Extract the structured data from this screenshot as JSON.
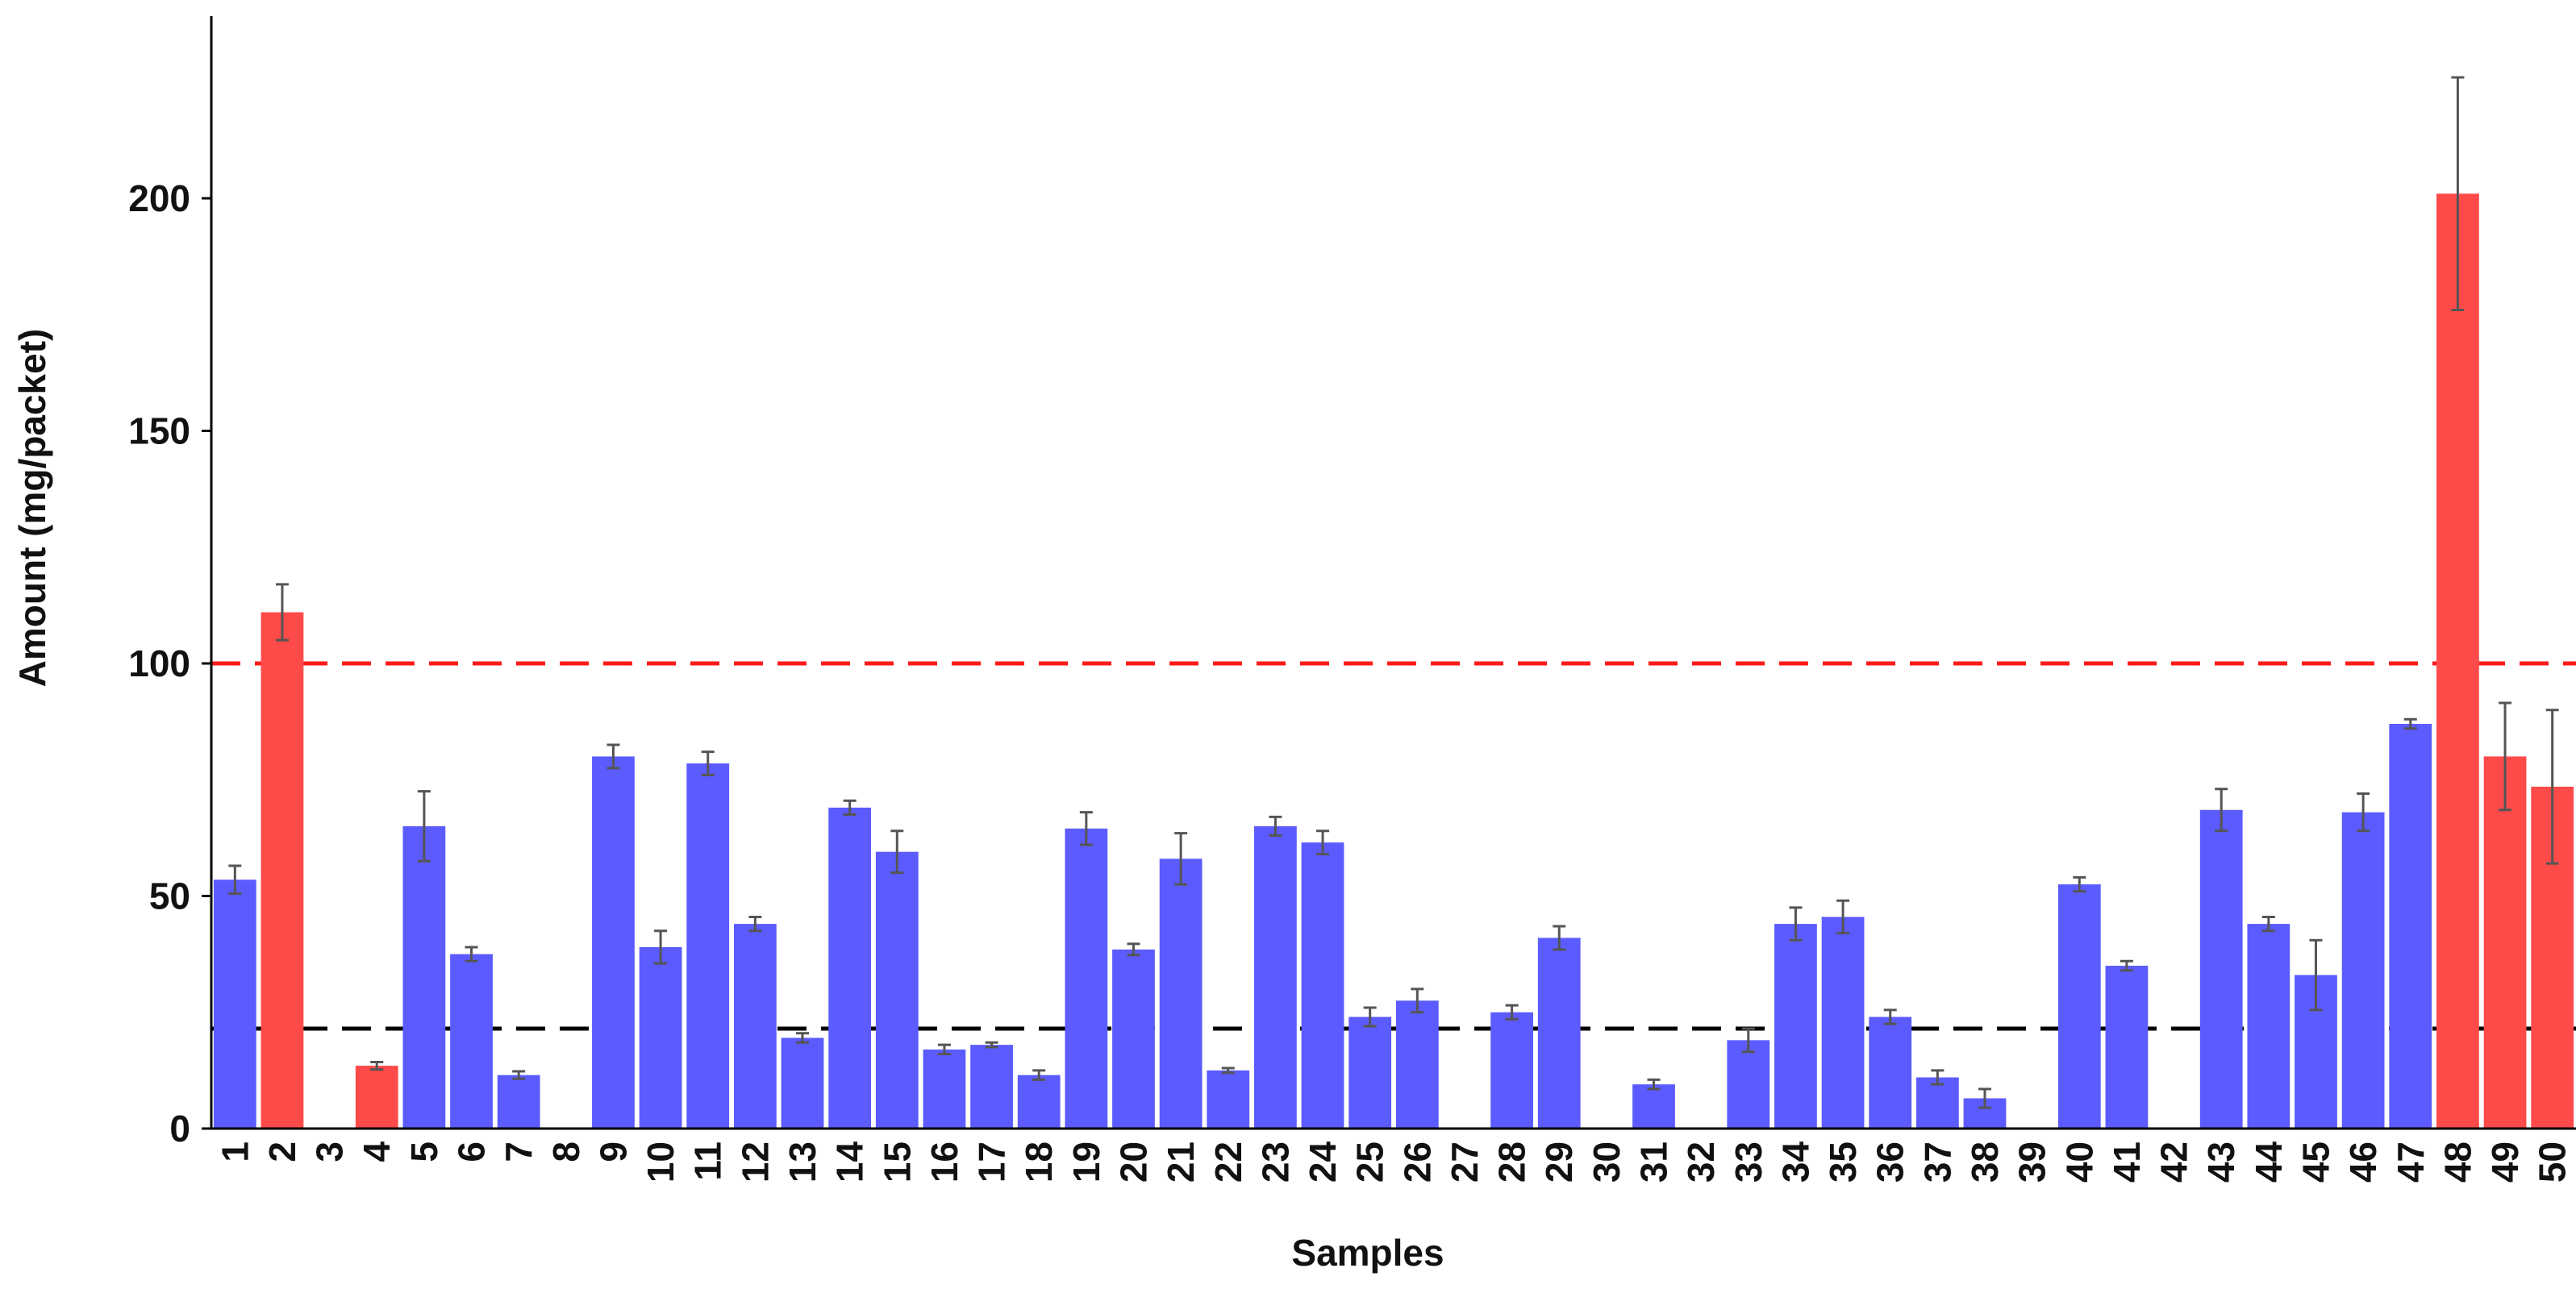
{
  "chart_data": {
    "type": "bar",
    "xlabel": "Samples",
    "ylabel": "Amount (mg/packet)",
    "ylim": [
      0,
      240
    ],
    "yticks": [
      0,
      50,
      100,
      150,
      200
    ],
    "grid": false,
    "categories": [
      "1",
      "2",
      "3",
      "4",
      "5",
      "6",
      "7",
      "8",
      "9",
      "10",
      "11",
      "12",
      "13",
      "14",
      "15",
      "16",
      "17",
      "18",
      "19",
      "20",
      "21",
      "22",
      "23",
      "24",
      "25",
      "26",
      "27",
      "28",
      "29",
      "30",
      "31",
      "32",
      "33",
      "34",
      "35",
      "36",
      "37",
      "38",
      "39",
      "40",
      "41",
      "42",
      "43",
      "44",
      "45",
      "46",
      "47",
      "48",
      "49",
      "50"
    ],
    "values": [
      53.5,
      111,
      0,
      13.5,
      65,
      37.5,
      11.5,
      0,
      80,
      39,
      78.5,
      44,
      19.5,
      69,
      59.5,
      17,
      18,
      11.5,
      64.5,
      38.5,
      58,
      12.5,
      65,
      61.5,
      24,
      27.5,
      0,
      25,
      41,
      0,
      9.5,
      0,
      19,
      44,
      45.5,
      24,
      11,
      6.5,
      0,
      52.5,
      35,
      0,
      68.5,
      44,
      33,
      68,
      87,
      201,
      80,
      73.5
    ],
    "errors": [
      3,
      6,
      0,
      0.8,
      7.5,
      1.5,
      0.8,
      0,
      2.5,
      3.5,
      2.5,
      1.5,
      1,
      1.5,
      4.5,
      1,
      0.5,
      1,
      3.5,
      1.2,
      5.5,
      0.5,
      2,
      2.5,
      2,
      2.5,
      0,
      1.5,
      2.5,
      0,
      1,
      0,
      2.5,
      3.5,
      3.5,
      1.5,
      1.5,
      2,
      0,
      1.5,
      1,
      0,
      4.5,
      1.5,
      7.5,
      4,
      1,
      25,
      11.5,
      16.5
    ],
    "highlight": [
      "2",
      "4",
      "48",
      "49",
      "50"
    ],
    "reference_lines": [
      {
        "value": 100,
        "color": "#ff1a1a",
        "style": "dashed"
      },
      {
        "value": 21.5,
        "color": "#000000",
        "style": "dashed"
      }
    ],
    "colors": {
      "bar": "#5b5bff",
      "highlight_bar": "#ff4a4a",
      "error": "#555555",
      "axis": "#000000"
    }
  }
}
